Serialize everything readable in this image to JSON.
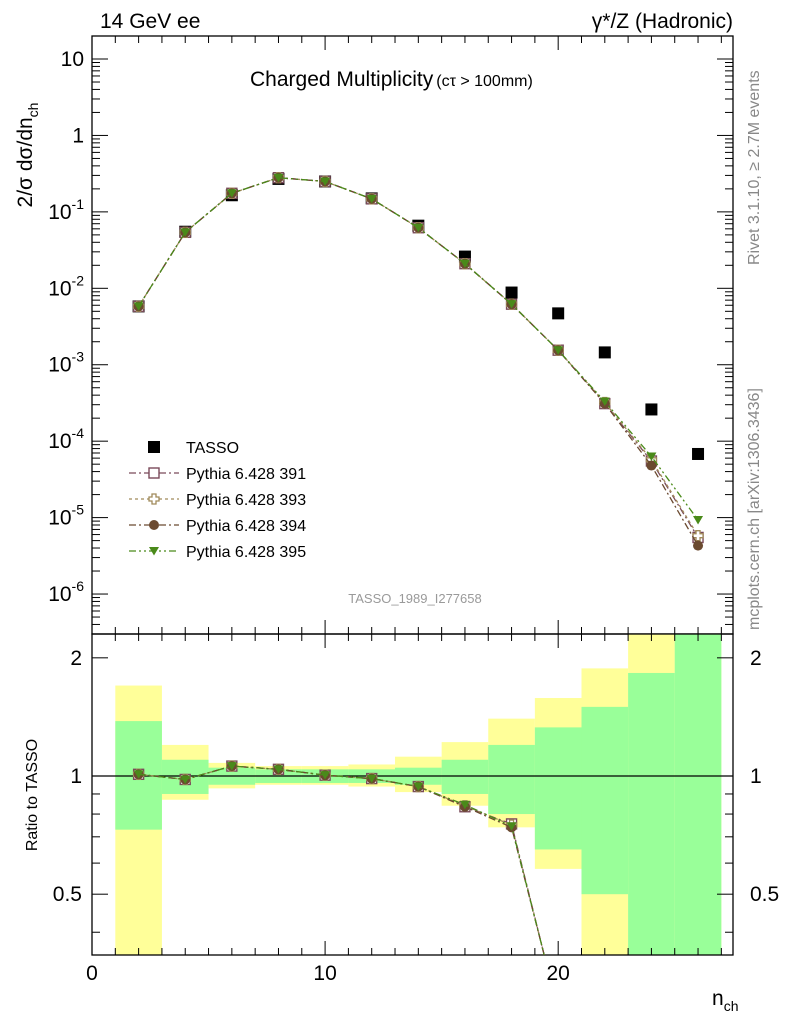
{
  "header": {
    "left": "14 GeV ee",
    "right": "γ*/Z (Hadronic)"
  },
  "side_labels": {
    "rivet": "Rivet 3.1.10, ≥ 2.7M events",
    "mcplots": "mcplots.cern.ch [arXiv:1306.3436]"
  },
  "chart_data": [
    {
      "type": "scatter",
      "title": "Charged Multiplicity",
      "title_suffix": "(cτ > 100mm)",
      "analysis_label": "TASSO_1989_I277658",
      "ylabel": "2/σ dσ/dn",
      "ylabel_sub": "ch",
      "yscale": "log",
      "ylim": [
        3e-07,
        20
      ],
      "xlim": [
        0,
        27.5
      ],
      "yticks": [
        {
          "value": 1e-06,
          "label": "10",
          "exp": "-6"
        },
        {
          "value": 1e-05,
          "label": "10",
          "exp": "-5"
        },
        {
          "value": 0.0001,
          "label": "10",
          "exp": "-4"
        },
        {
          "value": 0.001,
          "label": "10",
          "exp": "-3"
        },
        {
          "value": 0.01,
          "label": "10",
          "exp": "-2"
        },
        {
          "value": 0.1,
          "label": "10",
          "exp": "-1"
        },
        {
          "value": 1,
          "label": "1",
          "exp": ""
        },
        {
          "value": 10,
          "label": "10",
          "exp": ""
        }
      ],
      "legend_position": "bottom-left",
      "series": [
        {
          "name": "TASSO",
          "marker": "filled-square",
          "color": "#000000",
          "x": [
            2,
            4,
            6,
            8,
            10,
            12,
            14,
            16,
            18,
            20,
            22,
            24,
            26
          ],
          "y": [
            0.0058,
            0.055,
            0.165,
            0.27,
            0.25,
            0.15,
            0.066,
            0.026,
            0.0088,
            0.0047,
            0.00145,
            0.00026,
            6.8e-05
          ]
        },
        {
          "name": "Pythia 6.428 391",
          "marker": "open-square",
          "color": "#7a4a5a",
          "x": [
            2,
            4,
            6,
            8,
            10,
            12,
            14,
            16,
            18,
            20,
            22,
            24,
            26
          ],
          "y": [
            0.0058,
            0.054,
            0.175,
            0.28,
            0.25,
            0.148,
            0.062,
            0.021,
            0.0062,
            0.00155,
            0.00031,
            5.5e-05,
            5.5e-06
          ]
        },
        {
          "name": "Pythia 6.428 393",
          "marker": "open-cross",
          "color": "#a08a5a",
          "x": [
            2,
            4,
            6,
            8,
            10,
            12,
            14,
            16,
            18,
            20,
            22,
            24,
            26
          ],
          "y": [
            0.0058,
            0.054,
            0.175,
            0.28,
            0.25,
            0.148,
            0.062,
            0.021,
            0.0062,
            0.00155,
            0.00032,
            5.7e-05,
            5.8e-06
          ]
        },
        {
          "name": "Pythia 6.428 394",
          "marker": "filled-circle",
          "color": "#6b4a30",
          "x": [
            2,
            4,
            6,
            8,
            10,
            12,
            14,
            16,
            18,
            20,
            22,
            24,
            26
          ],
          "y": [
            0.0058,
            0.054,
            0.175,
            0.28,
            0.25,
            0.148,
            0.062,
            0.021,
            0.0062,
            0.00155,
            0.00031,
            4.8e-05,
            4.3e-06
          ]
        },
        {
          "name": "Pythia 6.428 395",
          "marker": "filled-triangle-down",
          "color": "#4a8a1a",
          "x": [
            2,
            4,
            6,
            8,
            10,
            12,
            14,
            16,
            18,
            20,
            22,
            24,
            26
          ],
          "y": [
            0.0058,
            0.054,
            0.175,
            0.28,
            0.25,
            0.148,
            0.062,
            0.021,
            0.0062,
            0.00155,
            0.00033,
            6.3e-05,
            9.3e-06
          ]
        }
      ]
    },
    {
      "type": "scatter",
      "ylabel": "Ratio to TASSO",
      "xlabel": "n",
      "xlabel_sub": "ch",
      "xlim": [
        0,
        27.5
      ],
      "ylim": [
        0.35,
        2.3
      ],
      "yscale": "log",
      "xticks": [
        0,
        10,
        20
      ],
      "yticks": [
        0.5,
        1,
        2
      ],
      "reference_line": 1,
      "bands": {
        "bin_edges": [
          1,
          3,
          5,
          7,
          9,
          11,
          13,
          15,
          17,
          19,
          21,
          23,
          25,
          27
        ],
        "inner": {
          "color": "#99ff99",
          "low": [
            0.73,
            0.9,
            0.95,
            0.96,
            0.96,
            0.96,
            0.95,
            0.9,
            0.8,
            0.65,
            0.5,
            0.3,
            0.3
          ],
          "high": [
            1.38,
            1.1,
            1.05,
            1.04,
            1.04,
            1.04,
            1.05,
            1.1,
            1.2,
            1.33,
            1.5,
            1.83,
            2.3
          ]
        },
        "outer": {
          "color": "#ffff99",
          "low": [
            0.3,
            0.87,
            0.93,
            0.95,
            0.95,
            0.94,
            0.91,
            0.84,
            0.74,
            0.58,
            0.3,
            0.3,
            0.3
          ],
          "high": [
            1.7,
            1.2,
            1.08,
            1.06,
            1.06,
            1.07,
            1.12,
            1.22,
            1.4,
            1.58,
            1.88,
            2.3,
            2.3
          ]
        }
      },
      "series": [
        {
          "name": "Pythia 6.428 391",
          "color": "#7a4a5a",
          "marker": "open-square",
          "x": [
            2,
            4,
            6,
            8,
            10,
            12,
            14,
            16,
            18
          ],
          "y": [
            1.01,
            0.98,
            1.06,
            1.04,
            1.005,
            0.985,
            0.94,
            0.835,
            0.755
          ]
        },
        {
          "name": "Pythia 6.428 393",
          "color": "#a08a5a",
          "marker": "open-cross",
          "x": [
            2,
            4,
            6,
            8,
            10,
            12,
            14,
            16,
            18
          ],
          "y": [
            1.01,
            0.98,
            1.06,
            1.04,
            1.005,
            0.985,
            0.94,
            0.84,
            0.75
          ]
        },
        {
          "name": "Pythia 6.428 394",
          "color": "#6b4a30",
          "marker": "filled-circle",
          "x": [
            2,
            4,
            6,
            8,
            10,
            12,
            14,
            16,
            18
          ],
          "y": [
            1.01,
            0.98,
            1.06,
            1.04,
            1.005,
            0.985,
            0.94,
            0.835,
            0.74
          ]
        },
        {
          "name": "Pythia 6.428 395",
          "color": "#4a8a1a",
          "marker": "filled-triangle-down",
          "x": [
            2,
            4,
            6,
            8,
            10,
            12,
            14,
            16,
            18
          ],
          "y": [
            1.01,
            0.98,
            1.06,
            1.04,
            1.005,
            0.985,
            0.94,
            0.845,
            0.745
          ]
        }
      ]
    }
  ]
}
